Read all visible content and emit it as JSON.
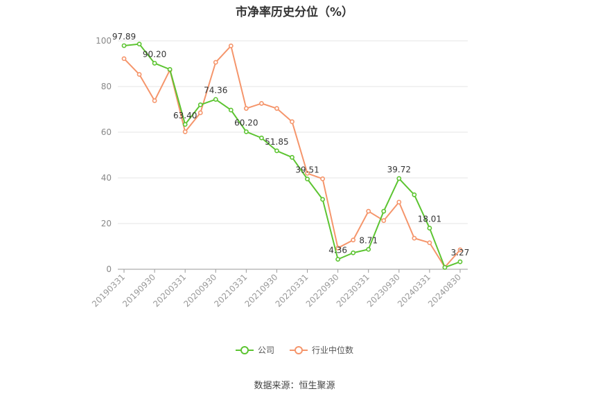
{
  "title": "市净率历史分位（%）",
  "source": "数据来源：恒生聚源",
  "colors": {
    "company": "#5cc431",
    "industry": "#f5956b",
    "grid": "#e6e6e6",
    "axis": "#999999"
  },
  "legend": {
    "company": "公司",
    "industry": "行业中位数"
  },
  "chart_data": {
    "type": "line",
    "ylim": [
      0,
      100
    ],
    "yticks": [
      0,
      20,
      40,
      60,
      80,
      100
    ],
    "x": [
      "20190331",
      "20190630",
      "20190930",
      "20191231",
      "20200331",
      "20200630",
      "20200930",
      "20201231",
      "20210331",
      "20210630",
      "20210930",
      "20211231",
      "20220331",
      "20220630",
      "20220930",
      "20221231",
      "20230331",
      "20230630",
      "20230930",
      "20231231",
      "20240331",
      "20240630",
      "20240830"
    ],
    "xtick_labels": [
      "20190331",
      "20190930",
      "20200331",
      "20200930",
      "20210331",
      "20210930",
      "20220331",
      "20220930",
      "20230331",
      "20230930",
      "20240331",
      "20240830"
    ],
    "series": [
      {
        "name": "公司",
        "color": "#5cc431",
        "values": [
          97.89,
          98.6,
          90.2,
          87.5,
          63.4,
          72.0,
          74.36,
          69.7,
          60.2,
          57.5,
          51.85,
          49.0,
          39.51,
          30.6,
          4.36,
          7.2,
          8.71,
          25.4,
          39.72,
          32.6,
          18.01,
          0.8,
          3.27
        ]
      },
      {
        "name": "行业中位数",
        "color": "#f5956b",
        "values": [
          92.2,
          85.3,
          73.8,
          87.2,
          60.2,
          68.5,
          90.6,
          97.8,
          70.4,
          72.6,
          70.4,
          64.6,
          42.0,
          39.6,
          9.3,
          12.8,
          25.4,
          21.3,
          29.4,
          13.6,
          11.6,
          0.9,
          8.5
        ]
      }
    ],
    "data_labels": [
      {
        "index": 0,
        "text": "97.89"
      },
      {
        "index": 2,
        "text": "90.20"
      },
      {
        "index": 4,
        "text": "63.40"
      },
      {
        "index": 6,
        "text": "74.36"
      },
      {
        "index": 8,
        "text": "60.20"
      },
      {
        "index": 10,
        "text": "51.85"
      },
      {
        "index": 12,
        "text": "39.51"
      },
      {
        "index": 14,
        "text": "4.36"
      },
      {
        "index": 16,
        "text": "8.71"
      },
      {
        "index": 18,
        "text": "39.72"
      },
      {
        "index": 20,
        "text": "18.01"
      },
      {
        "index": 22,
        "text": "3.27"
      }
    ]
  }
}
